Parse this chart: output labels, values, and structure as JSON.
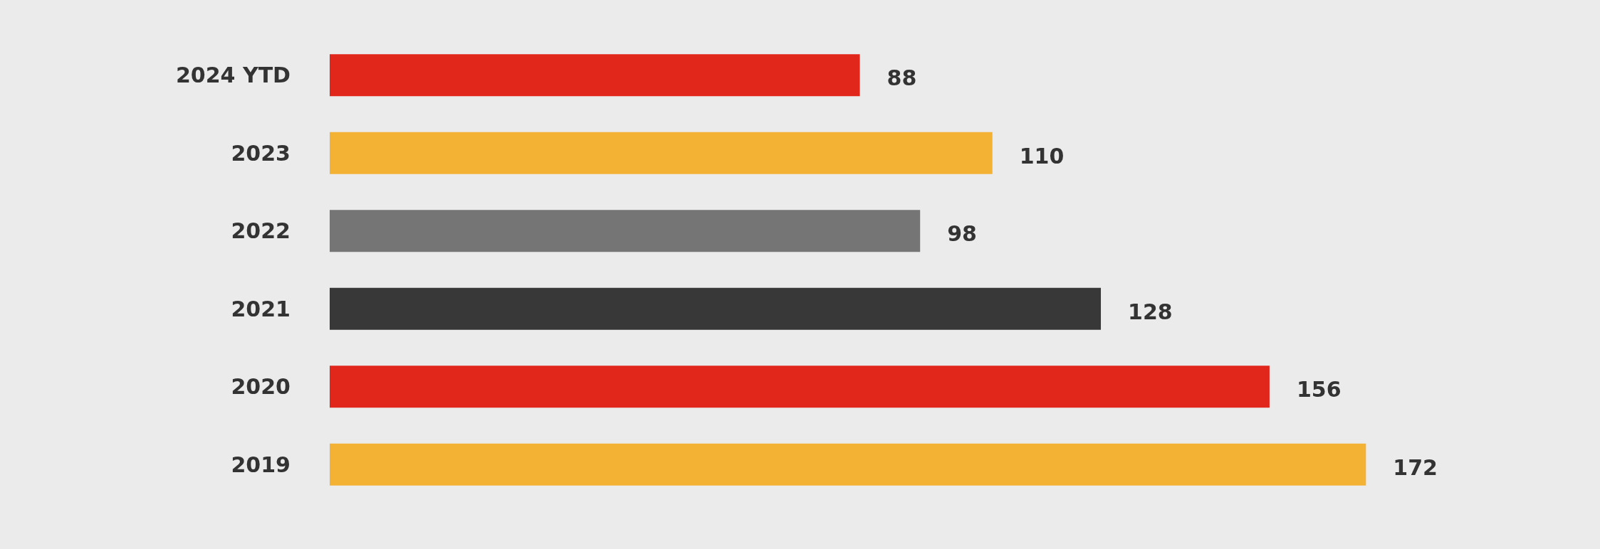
{
  "chart_data": {
    "type": "bar",
    "orientation": "horizontal",
    "categories": [
      "2024 YTD",
      "2023",
      "2022",
      "2021",
      "2020",
      "2019"
    ],
    "values": [
      88,
      110,
      98,
      128,
      156,
      172
    ],
    "colors": [
      "#e1261c",
      "#f4b234",
      "#757575",
      "#383838",
      "#e1261c",
      "#f4b234"
    ],
    "data_labels": true
  }
}
